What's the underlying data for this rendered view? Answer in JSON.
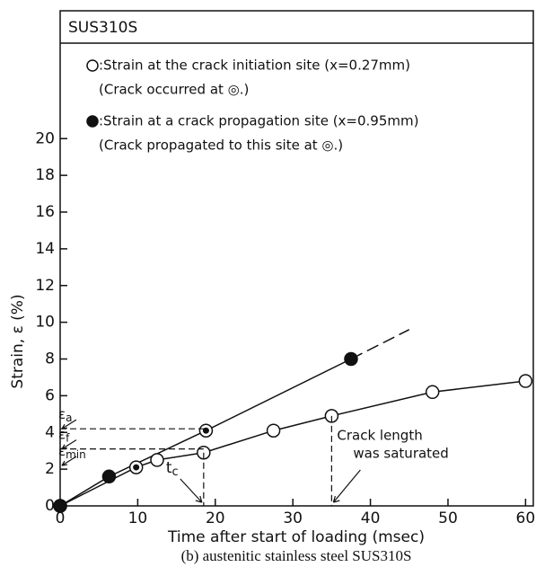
{
  "chart_data": {
    "type": "line",
    "header": "SUS310S",
    "xlabel": "Time after start of loading  (msec)",
    "ylabel": "Strain, ε (%)",
    "caption": "(b) austenitic stainless steel SUS310S",
    "xlim": [
      0,
      61
    ],
    "ylim": [
      0,
      25.2
    ],
    "xticks": [
      0,
      10,
      20,
      30,
      40,
      50,
      60
    ],
    "yticks": [
      0,
      2,
      4,
      6,
      8,
      10,
      12,
      14,
      16,
      18,
      20
    ],
    "series": [
      {
        "name": ":Strain at the crack initiation site (x=0.27mm)",
        "note": "(Crack occurred at ◎.)",
        "marker": "open",
        "color": "#111",
        "x": [
          0,
          9.8,
          12.5,
          18.5,
          27.5,
          35,
          48,
          60
        ],
        "values": [
          0,
          2.1,
          2.5,
          2.9,
          4.1,
          4.9,
          6.2,
          6.8
        ],
        "double_circle_index": 1
      },
      {
        "name": ":Strain at a crack propagation site (x=0.95mm)",
        "note": "(Crack propagated to this site at ◎.)",
        "marker": "filled",
        "color": "#111",
        "x": [
          0,
          6.3,
          18.8,
          37.5
        ],
        "values": [
          0,
          1.6,
          4.1,
          8.0
        ],
        "double_circle_index": 2,
        "extension_to": [
          45,
          9.6
        ]
      }
    ],
    "levels": [
      {
        "symbol": "ε",
        "sub": "a",
        "y": 4.2,
        "x": 18.8
      },
      {
        "symbol": "ε",
        "sub": "f",
        "y": 3.1,
        "x": 18.5
      },
      {
        "symbol": "ε",
        "sub": "min",
        "y": 2.2
      }
    ],
    "verticals": [
      {
        "lines": [
          "t"
        ],
        "sub": "c",
        "x": 18.5,
        "y": 2.9
      },
      {
        "lines": [
          "Crack length",
          "was saturated"
        ],
        "x": 35,
        "y": 4.9
      }
    ]
  }
}
